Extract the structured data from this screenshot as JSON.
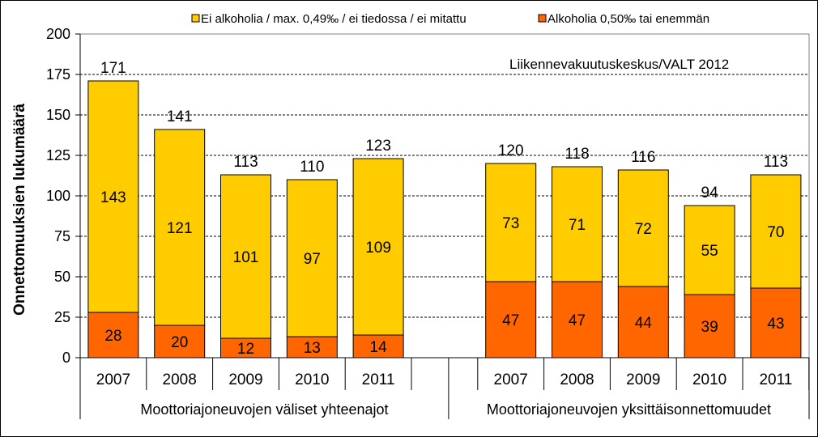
{
  "chart_data": {
    "type": "bar",
    "stacked": true,
    "ylabel": "Onnettomuuksien lukumäärä",
    "ylim": [
      0,
      200
    ],
    "yticks": [
      0,
      25,
      50,
      75,
      100,
      125,
      150,
      175,
      200
    ],
    "grid": "dashed horizontal",
    "legend_position": "top",
    "source_note": "Liikennevakuutuskeskus/VALT 2012",
    "groups": [
      {
        "label": "Moottoriajoneuvojen väliset yhteenajot",
        "categories": [
          "2007",
          "2008",
          "2009",
          "2010",
          "2011"
        ],
        "alcohol": [
          28,
          20,
          12,
          13,
          14
        ],
        "no_alcohol": [
          143,
          121,
          101,
          97,
          109
        ],
        "totals": [
          171,
          141,
          113,
          110,
          123
        ]
      },
      {
        "label": "Moottoriajoneuvojen yksittäisonnettomuudet",
        "categories": [
          "2007",
          "2008",
          "2009",
          "2010",
          "2011"
        ],
        "alcohol": [
          47,
          47,
          44,
          39,
          43
        ],
        "no_alcohol": [
          73,
          71,
          72,
          55,
          70
        ],
        "totals": [
          120,
          118,
          116,
          94,
          113
        ]
      }
    ],
    "series": [
      {
        "name": "Ei alkoholia / max. 0,49‰ / ei tiedossa / ei mitattu",
        "key": "no_alcohol",
        "color": "#FFCC00"
      },
      {
        "name": "Alkoholia 0,50‰ tai enemmän",
        "key": "alcohol",
        "color": "#FF6600"
      }
    ]
  }
}
